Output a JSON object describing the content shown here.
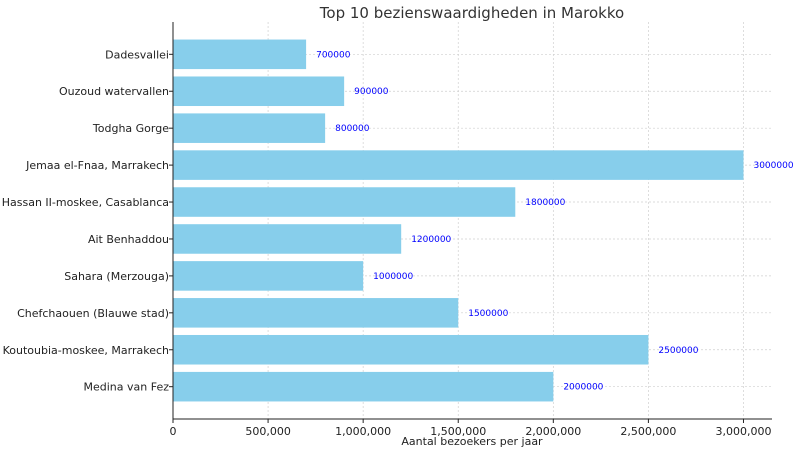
{
  "chart_data": {
    "type": "bar",
    "orientation": "horizontal",
    "title": "Top 10 bezienswaardigheden in Marokko",
    "xlabel": "Aantal bezoekers per jaar",
    "ylabel": "",
    "xlim": [
      0,
      3150000
    ],
    "xticks": [
      0,
      500000,
      1000000,
      1500000,
      2000000,
      2500000,
      3000000
    ],
    "xtick_labels": [
      "0",
      "500,000",
      "1,000,000",
      "1,500,000",
      "2,000,000",
      "2,500,000",
      "3,000,000"
    ],
    "categories": [
      "Dadesvallei",
      "Ouzoud watervallen",
      "Todgha Gorge",
      "Jemaa el-Fnaa, Marrakech",
      "Hassan II-moskee, Casablanca",
      "Ait Benhaddou",
      "Sahara (Merzouga)",
      "Chefchaouen (Blauwe stad)",
      "Koutoubia-moskee, Marrakech",
      "Medina van Fez"
    ],
    "values": [
      700000,
      900000,
      800000,
      3000000,
      1800000,
      1200000,
      1000000,
      1500000,
      2500000,
      2000000
    ],
    "value_labels": [
      "700000",
      "900000",
      "800000",
      "3000000",
      "1800000",
      "1200000",
      "1000000",
      "1500000",
      "2500000",
      "2000000"
    ],
    "grid": true,
    "colors": {
      "bar": "#87ceeb",
      "data_label": "#0000ff"
    }
  }
}
